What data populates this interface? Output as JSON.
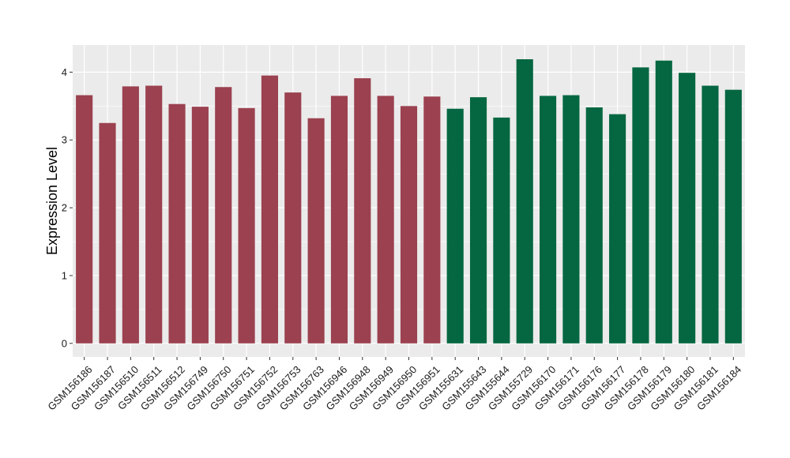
{
  "chart_data": {
    "type": "bar",
    "title": "",
    "xlabel": "",
    "ylabel": "Expression Level",
    "ylim": [
      -0.2,
      4.4
    ],
    "yticks": [
      0,
      1,
      2,
      3,
      4
    ],
    "grid": true,
    "background": "#ebebeb",
    "categories": [
      "GSM156186",
      "GSM156187",
      "GSM156510",
      "GSM156511",
      "GSM156512",
      "GSM156749",
      "GSM156750",
      "GSM156751",
      "GSM156752",
      "GSM156753",
      "GSM156763",
      "GSM156946",
      "GSM156948",
      "GSM156949",
      "GSM156950",
      "GSM156951",
      "GSM155631",
      "GSM155643",
      "GSM155644",
      "GSM155729",
      "GSM156170",
      "GSM156171",
      "GSM156176",
      "GSM156177",
      "GSM156178",
      "GSM156179",
      "GSM156180",
      "GSM156181",
      "GSM156184"
    ],
    "values": [
      3.66,
      3.25,
      3.79,
      3.8,
      3.53,
      3.49,
      3.78,
      3.47,
      3.95,
      3.7,
      3.32,
      3.65,
      3.91,
      3.65,
      3.5,
      3.64,
      3.46,
      3.63,
      3.33,
      4.19,
      3.65,
      3.66,
      3.48,
      3.38,
      4.07,
      4.17,
      3.99,
      3.8,
      3.74
    ],
    "group_colors": [
      "#9b4150",
      "#9b4150",
      "#9b4150",
      "#9b4150",
      "#9b4150",
      "#9b4150",
      "#9b4150",
      "#9b4150",
      "#9b4150",
      "#9b4150",
      "#9b4150",
      "#9b4150",
      "#9b4150",
      "#9b4150",
      "#9b4150",
      "#9b4150",
      "#056741",
      "#056741",
      "#056741",
      "#056741",
      "#056741",
      "#056741",
      "#056741",
      "#056741",
      "#056741",
      "#056741",
      "#056741",
      "#056741",
      "#056741"
    ]
  }
}
